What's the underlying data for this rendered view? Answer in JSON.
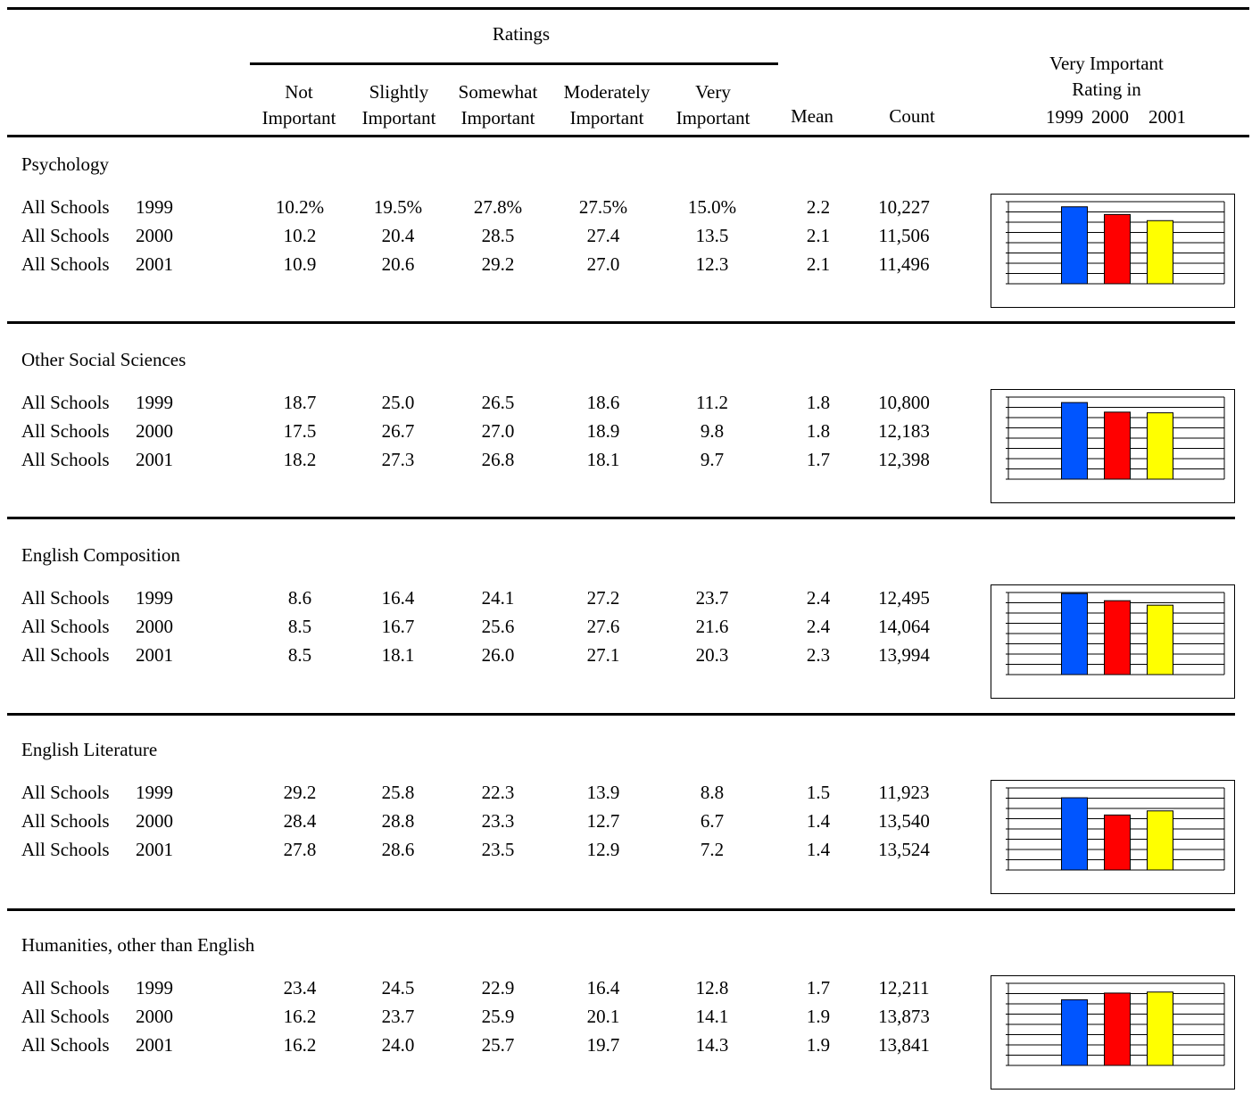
{
  "header": {
    "ratings_label": "Ratings",
    "columns": [
      {
        "line1": "Not",
        "line2": "Important"
      },
      {
        "line1": "Slightly",
        "line2": "Important"
      },
      {
        "line1": "Somewhat",
        "line2": "Important"
      },
      {
        "line1": "Moderately",
        "line2": "Important"
      },
      {
        "line1": "Very",
        "line2": "Important"
      },
      {
        "line1": "",
        "line2": "Mean"
      },
      {
        "line1": "",
        "line2": "Count"
      }
    ],
    "very_important_title_line1": "Very Important",
    "very_important_title_line2": "Rating in",
    "years": [
      "1999",
      "2000",
      "2001"
    ]
  },
  "sections": [
    {
      "title": "Psychology",
      "rows": [
        {
          "label": "All Schools",
          "year": "1999",
          "values": [
            "10.2%",
            "19.5%",
            "27.8%",
            "27.5%",
            "15.0%",
            "2.2",
            "10,227"
          ]
        },
        {
          "label": "All Schools",
          "year": "2000",
          "values": [
            "10.2",
            "20.4",
            "28.5",
            "27.4",
            "13.5",
            "2.1",
            "11,506"
          ]
        },
        {
          "label": "All Schools",
          "year": "2001",
          "values": [
            "10.9",
            "20.6",
            "29.2",
            "27.0",
            "12.3",
            "2.1",
            "11,496"
          ]
        }
      ]
    },
    {
      "title": "Other Social Sciences",
      "rows": [
        {
          "label": "All Schools",
          "year": "1999",
          "values": [
            "18.7",
            "25.0",
            "26.5",
            "18.6",
            "11.2",
            "1.8",
            "10,800"
          ]
        },
        {
          "label": "All Schools",
          "year": "2000",
          "values": [
            "17.5",
            "26.7",
            "27.0",
            "18.9",
            "9.8",
            "1.8",
            "12,183"
          ]
        },
        {
          "label": "All Schools",
          "year": "2001",
          "values": [
            "18.2",
            "27.3",
            "26.8",
            "18.1",
            "9.7",
            "1.7",
            "12,398"
          ]
        }
      ]
    },
    {
      "title": "English Composition",
      "rows": [
        {
          "label": "All Schools",
          "year": "1999",
          "values": [
            "8.6",
            "16.4",
            "24.1",
            "27.2",
            "23.7",
            "2.4",
            "12,495"
          ]
        },
        {
          "label": "All Schools",
          "year": "2000",
          "values": [
            "8.5",
            "16.7",
            "25.6",
            "27.6",
            "21.6",
            "2.4",
            "14,064"
          ]
        },
        {
          "label": "All Schools",
          "year": "2001",
          "values": [
            "8.5",
            "18.1",
            "26.0",
            "27.1",
            "20.3",
            "2.3",
            "13,994"
          ]
        }
      ]
    },
    {
      "title": "English Literature",
      "rows": [
        {
          "label": "All Schools",
          "year": "1999",
          "values": [
            "29.2",
            "25.8",
            "22.3",
            "13.9",
            "8.8",
            "1.5",
            "11,923"
          ]
        },
        {
          "label": "All Schools",
          "year": "2000",
          "values": [
            "28.4",
            "28.8",
            "23.3",
            "12.7",
            "6.7",
            "1.4",
            "13,540"
          ]
        },
        {
          "label": "All Schools",
          "year": "2001",
          "values": [
            "27.8",
            "28.6",
            "23.5",
            "12.9",
            "7.2",
            "1.4",
            "13,524"
          ]
        }
      ]
    },
    {
      "title": "Humanities, other than English",
      "rows": [
        {
          "label": "All Schools",
          "year": "1999",
          "values": [
            "23.4",
            "24.5",
            "22.9",
            "16.4",
            "12.8",
            "1.7",
            "12,211"
          ]
        },
        {
          "label": "All Schools",
          "year": "2000",
          "values": [
            "16.2",
            "23.7",
            "25.9",
            "20.1",
            "14.1",
            "1.9",
            "13,873"
          ]
        },
        {
          "label": "All Schools",
          "year": "2001",
          "values": [
            "16.2",
            "24.0",
            "25.7",
            "19.7",
            "14.3",
            "1.9",
            "13,841"
          ]
        }
      ]
    }
  ],
  "colors": {
    "bar_1999": "#0055ff",
    "bar_2000": "#ff0000",
    "bar_2001": "#ffff00"
  },
  "chart_data": [
    {
      "type": "bar",
      "categories": [
        "1999",
        "2000",
        "2001"
      ],
      "values": [
        15.0,
        13.5,
        12.3
      ],
      "ylim": [
        0,
        16
      ],
      "grid": true
    },
    {
      "type": "bar",
      "categories": [
        "1999",
        "2000",
        "2001"
      ],
      "values": [
        11.2,
        9.8,
        9.7
      ],
      "ylim": [
        0,
        12
      ],
      "grid": true
    },
    {
      "type": "bar",
      "categories": [
        "1999",
        "2000",
        "2001"
      ],
      "values": [
        23.7,
        21.6,
        20.3
      ],
      "ylim": [
        0,
        24
      ],
      "grid": true
    },
    {
      "type": "bar",
      "categories": [
        "1999",
        "2000",
        "2001"
      ],
      "values": [
        8.8,
        6.7,
        7.2
      ],
      "ylim": [
        0,
        10
      ],
      "grid": true
    },
    {
      "type": "bar",
      "categories": [
        "1999",
        "2000",
        "2001"
      ],
      "values": [
        12.8,
        14.1,
        14.3
      ],
      "ylim": [
        0,
        16
      ],
      "grid": true
    }
  ]
}
